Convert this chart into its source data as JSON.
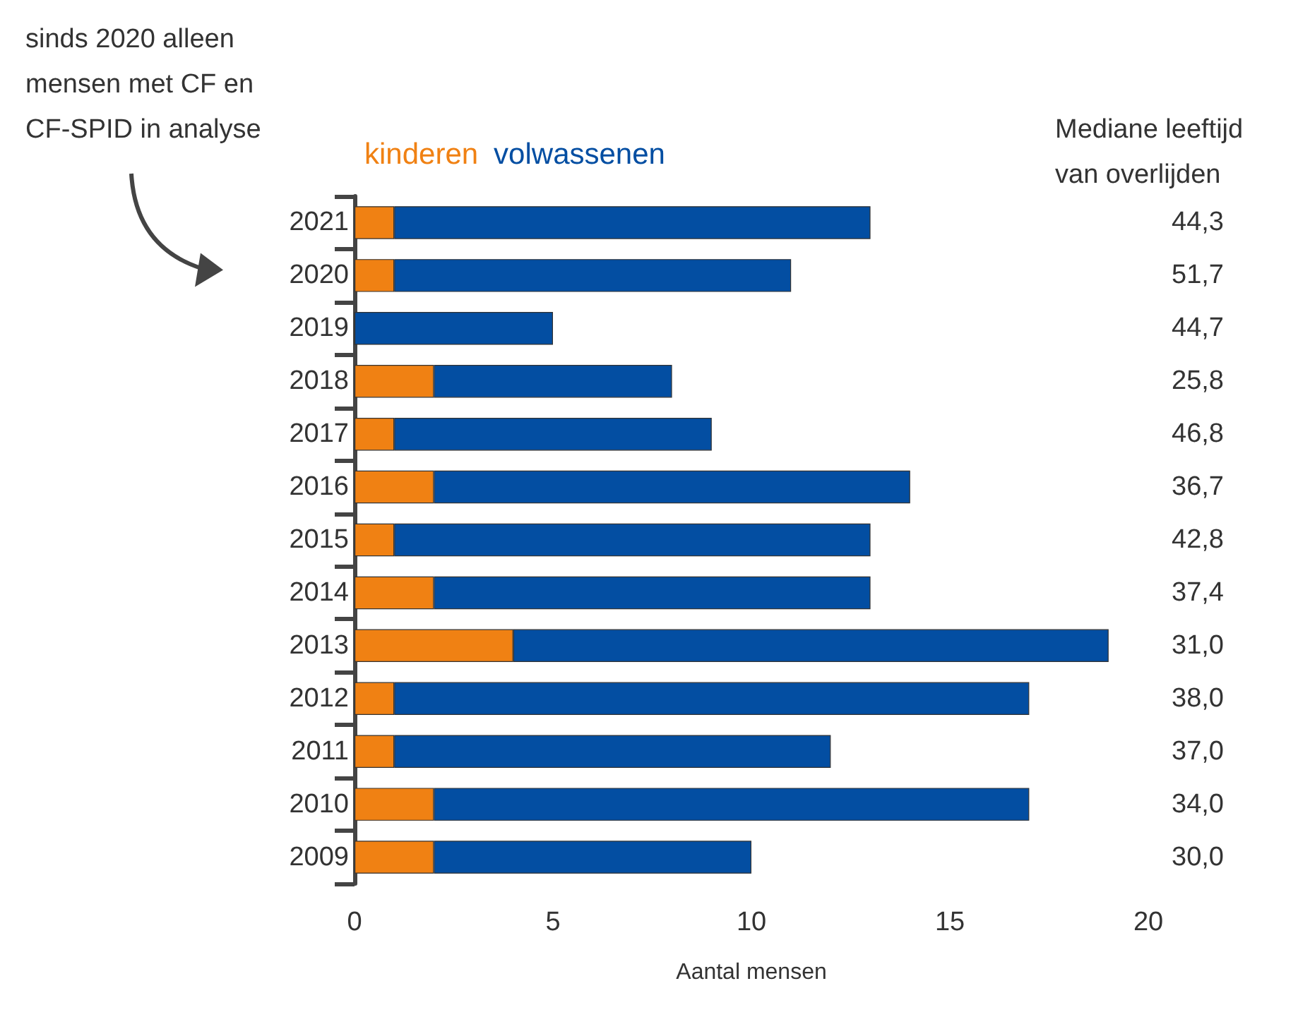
{
  "chart_data": {
    "type": "bar",
    "orientation": "horizontal",
    "stacked": true,
    "categories": [
      "2021",
      "2020",
      "2019",
      "2018",
      "2017",
      "2016",
      "2015",
      "2014",
      "2013",
      "2012",
      "2011",
      "2010",
      "2009"
    ],
    "series": [
      {
        "name": "kinderen",
        "color": "#f08113",
        "values": [
          1,
          1,
          0,
          2,
          1,
          2,
          1,
          2,
          4,
          1,
          1,
          2,
          2
        ]
      },
      {
        "name": "volwassenen",
        "color": "#034ea2",
        "values": [
          12,
          10,
          5,
          6,
          8,
          12,
          12,
          11,
          15,
          16,
          11,
          15,
          8
        ]
      }
    ],
    "xlabel": "Aantal mensen",
    "xlim": [
      0,
      20
    ],
    "xticks": [
      0,
      5,
      10,
      15,
      20
    ],
    "legend": "top left",
    "grid": false,
    "annotations": [
      "Mediane leeftijd van overlijden",
      "sinds 2020 alleen mensen met CF en CF-SPID in analyse",
      "44,3",
      "51,7",
      "44,7",
      "25,8",
      "46,8",
      "36,7",
      "42,8",
      "37,4",
      "31,0",
      "38,0",
      "37,0",
      "34,0",
      "30,0"
    ]
  }
}
